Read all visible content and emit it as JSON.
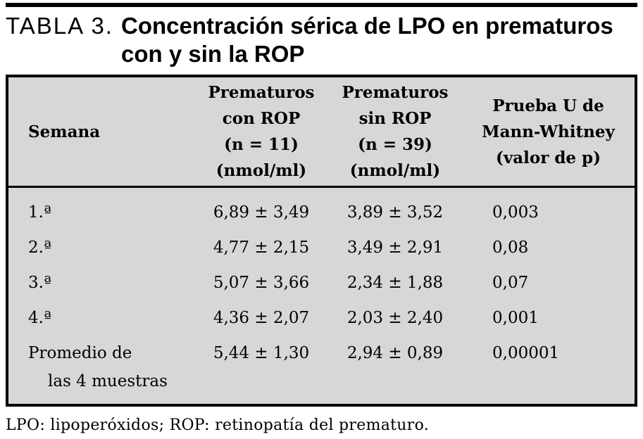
{
  "caption": {
    "label": "TABLA 3.",
    "title": "Concentración sérica de LPO en prematuros\ncon y sin la ROP"
  },
  "table": {
    "columns": [
      {
        "key": "semana",
        "header": "Semana"
      },
      {
        "key": "con_rop",
        "header": "Prematuros\ncon ROP\n(n = 11)\n(nmol/ml)"
      },
      {
        "key": "sin_rop",
        "header": "Prematuros\nsin ROP\n(n = 39)\n(nmol/ml)"
      },
      {
        "key": "p",
        "header": "Prueba U de\nMann-Whitney\n(valor de p)"
      }
    ],
    "rows": [
      {
        "semana": "1.ª",
        "con_rop": "6,89 ± 3,49",
        "sin_rop": "3,89 ± 3,52",
        "p": "0,003"
      },
      {
        "semana": "2.ª",
        "con_rop": "4,77 ± 2,15",
        "sin_rop": "3,49 ± 2,91",
        "p": "0,08"
      },
      {
        "semana": "3.ª",
        "con_rop": "5,07 ± 3,66",
        "sin_rop": "2,34 ± 1,88",
        "p": "0,07"
      },
      {
        "semana": "4.ª",
        "con_rop": "4,36 ± 2,07",
        "sin_rop": "2,03 ± 2,40",
        "p": "0,001"
      },
      {
        "semana": "Promedio de\nlas 4 muestras",
        "con_rop": "5,44 ± 1,30",
        "sin_rop": "2,94 ± 0,89",
        "p": "0,00001"
      }
    ]
  },
  "footnote": "LPO: lipoperóxidos; ROP: retinopatía del prematuro.",
  "colors": {
    "table_background": "#d7d7d7",
    "rule": "#000000",
    "text": "#000000",
    "page_background": "#ffffff"
  }
}
